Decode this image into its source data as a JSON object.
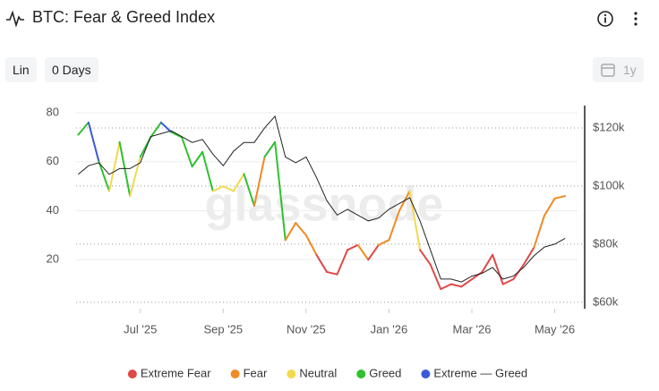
{
  "header": {
    "title": "BTC: Fear & Greed Index",
    "scale": "Lin",
    "smoothing": "0 Days",
    "range": "1y"
  },
  "chart_data": {
    "type": "line",
    "watermark": "glassnode",
    "x": [
      -1.5,
      -1.25,
      -1,
      -0.75,
      -0.5,
      -0.25,
      0,
      0.25,
      0.5,
      0.75,
      1,
      1.25,
      1.5,
      1.75,
      2,
      2.25,
      2.5,
      2.75,
      3,
      3.25,
      3.5,
      3.75,
      4,
      4.25,
      4.5,
      4.75,
      5,
      5.25,
      5.5,
      5.75,
      6,
      6.25,
      6.5,
      6.75,
      7,
      7.25,
      7.5,
      7.75,
      8,
      8.25,
      8.5,
      8.75,
      9,
      9.25,
      9.5,
      9.75,
      10,
      10.25
    ],
    "xlim": [
      -1.55,
      10.55
    ],
    "xticks": [
      {
        "value": 0,
        "label": "Jul '25"
      },
      {
        "value": 2,
        "label": "Sep '25"
      },
      {
        "value": 4,
        "label": "Nov '25"
      },
      {
        "value": 6,
        "label": "Jan '26"
      },
      {
        "value": 8,
        "label": "Mar '26"
      },
      {
        "value": 10,
        "label": "May '26"
      }
    ],
    "ylim": [
      0,
      84
    ],
    "yticks": [
      20,
      40,
      60,
      80
    ],
    "y2lim": [
      57800,
      128600
    ],
    "y2ticks": [
      {
        "value": 60000,
        "label": "$60k"
      },
      {
        "value": 80000,
        "label": "$80k"
      },
      {
        "value": 100000,
        "label": "$100k"
      },
      {
        "value": 120000,
        "label": "$120k"
      }
    ],
    "legend": [
      {
        "name": "Extreme Fear",
        "color": "#e04848"
      },
      {
        "name": "Fear",
        "color": "#f08a24"
      },
      {
        "name": "Neutral",
        "color": "#f2d94e"
      },
      {
        "name": "Greed",
        "color": "#2fc12f"
      },
      {
        "name": "Extreme — Greed",
        "color": "#3b5bd6"
      }
    ],
    "fear_greed": {
      "values": [
        71,
        76,
        60,
        48,
        68,
        46,
        62,
        70,
        76,
        72,
        70,
        58,
        64,
        48,
        50,
        48,
        55,
        42,
        62,
        68,
        28,
        35,
        30,
        22,
        15,
        14,
        24,
        26,
        20,
        26,
        28,
        40,
        48,
        24,
        18,
        8,
        10,
        9,
        12,
        15,
        22,
        10,
        12,
        18,
        25,
        38,
        45,
        46
      ],
      "zones": [
        3,
        4,
        3,
        2,
        3,
        2,
        3,
        3,
        4,
        3,
        3,
        3,
        3,
        2,
        2,
        2,
        3,
        1,
        3,
        3,
        1,
        1,
        1,
        0,
        0,
        0,
        0,
        1,
        0,
        1,
        1,
        1,
        2,
        0,
        0,
        0,
        0,
        0,
        0,
        0,
        0,
        0,
        0,
        0,
        1,
        1,
        1,
        2
      ]
    },
    "price": {
      "axis": "y2",
      "color": "#222222",
      "values": [
        104000,
        107000,
        108000,
        104000,
        106000,
        106000,
        108000,
        117000,
        118000,
        119000,
        117000,
        115000,
        116000,
        111000,
        107000,
        112000,
        115000,
        115000,
        120000,
        124000,
        110000,
        108000,
        110000,
        103000,
        95000,
        90000,
        92000,
        90000,
        88000,
        89000,
        92000,
        94000,
        96000,
        88000,
        78000,
        68000,
        68000,
        67000,
        69000,
        70000,
        72000,
        68000,
        69000,
        72000,
        76000,
        79000,
        80000,
        82000
      ]
    }
  }
}
